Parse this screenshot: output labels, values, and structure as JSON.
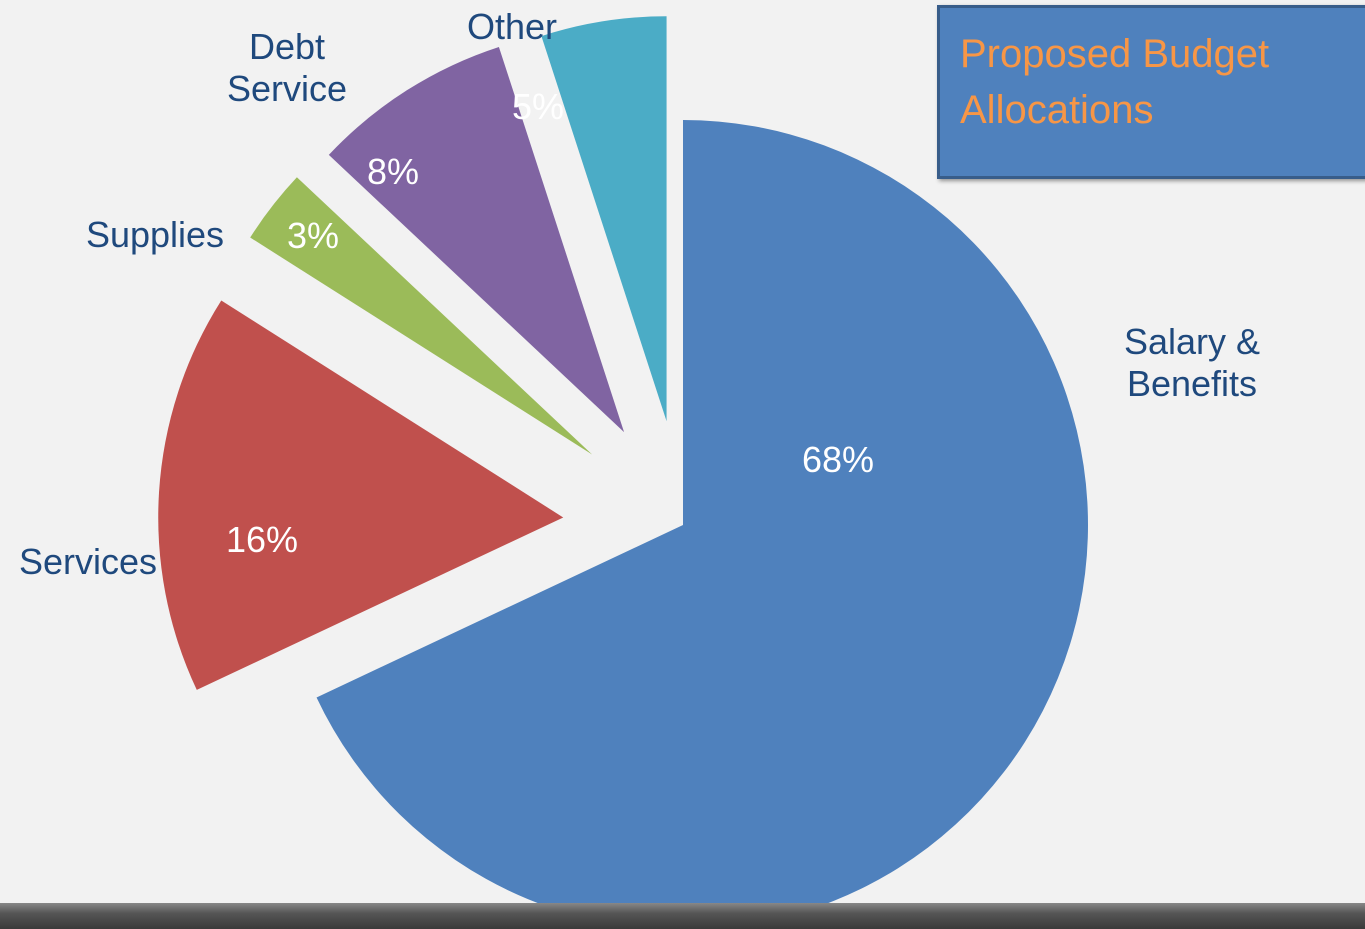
{
  "chart_data": {
    "type": "pie",
    "title": "Proposed Budget Allocations",
    "categories": [
      "Salary & Benefits",
      "Services",
      "Supplies",
      "Debt Service",
      "Other"
    ],
    "values": [
      68,
      16,
      3,
      8,
      5
    ],
    "value_labels": [
      "68%",
      "16%",
      "3%",
      "8%",
      "5%"
    ],
    "colors": [
      "#4f81bd",
      "#c0504d",
      "#9bbb59",
      "#8064a2",
      "#4bacc6"
    ]
  }
}
